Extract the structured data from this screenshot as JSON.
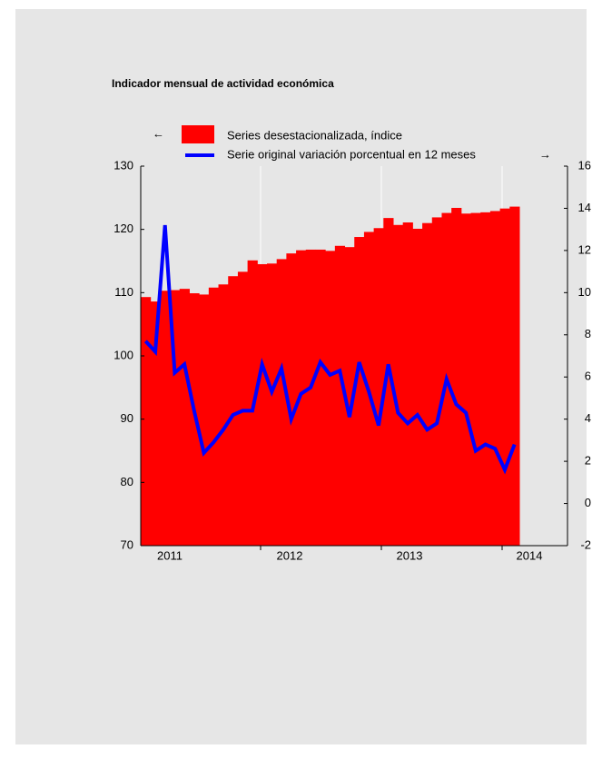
{
  "chart_data": {
    "type": "bar-line",
    "title": "Indicador mensual de actividad económica",
    "categories": [
      null,
      null,
      null,
      null,
      null,
      null,
      null,
      null,
      null,
      null,
      null,
      null,
      null,
      null,
      null,
      null,
      null,
      null,
      null,
      null,
      null,
      null,
      null,
      null,
      null,
      null,
      null,
      null,
      null,
      null,
      null,
      null,
      null,
      null,
      null,
      null,
      null,
      null,
      null
    ],
    "year_labels": [
      "2011",
      "2012",
      "2013",
      "2014"
    ],
    "arrow_left": "←",
    "arrow_right": "→",
    "series": [
      {
        "name": "Series desestacionalizada, índice",
        "color": "#ff0000",
        "kind": "bar",
        "values": [
          109.3,
          108.6,
          110.3,
          110.4,
          110.6,
          109.9,
          109.7,
          110.8,
          111.3,
          112.6,
          113.3,
          115.1,
          114.5,
          114.6,
          115.3,
          116.2,
          116.7,
          116.8,
          116.8,
          116.6,
          117.4,
          117.2,
          118.8,
          119.6,
          120.2,
          121.8,
          120.7,
          121.1,
          120.1,
          121.0,
          121.9,
          122.6,
          123.4,
          122.5,
          122.6,
          122.7,
          122.9,
          123.3,
          123.6
        ]
      },
      {
        "name": "Serie original variación porcentual en 12 meses",
        "color": "#0000ff",
        "kind": "line",
        "axis": "y2",
        "values": [
          7.7,
          7.2,
          13.2,
          6.2,
          6.6,
          4.4,
          2.4,
          2.9,
          3.5,
          4.2,
          4.4,
          4.4,
          6.6,
          5.3,
          6.4,
          4.0,
          5.2,
          5.5,
          6.7,
          6.1,
          6.3,
          4.1,
          6.7,
          5.3,
          3.7,
          6.6,
          4.3,
          3.8,
          4.2,
          3.5,
          3.8,
          5.9,
          4.7,
          4.3,
          2.5,
          2.8,
          2.6,
          1.6,
          2.8
        ]
      }
    ],
    "ylim": [
      70,
      130
    ],
    "yticks": [
      70,
      80,
      90,
      100,
      110,
      120,
      130
    ],
    "y2lim": [
      -2,
      16
    ],
    "y2ticks": [
      -2,
      0,
      2,
      4,
      6,
      8,
      10,
      12,
      14,
      16
    ]
  }
}
